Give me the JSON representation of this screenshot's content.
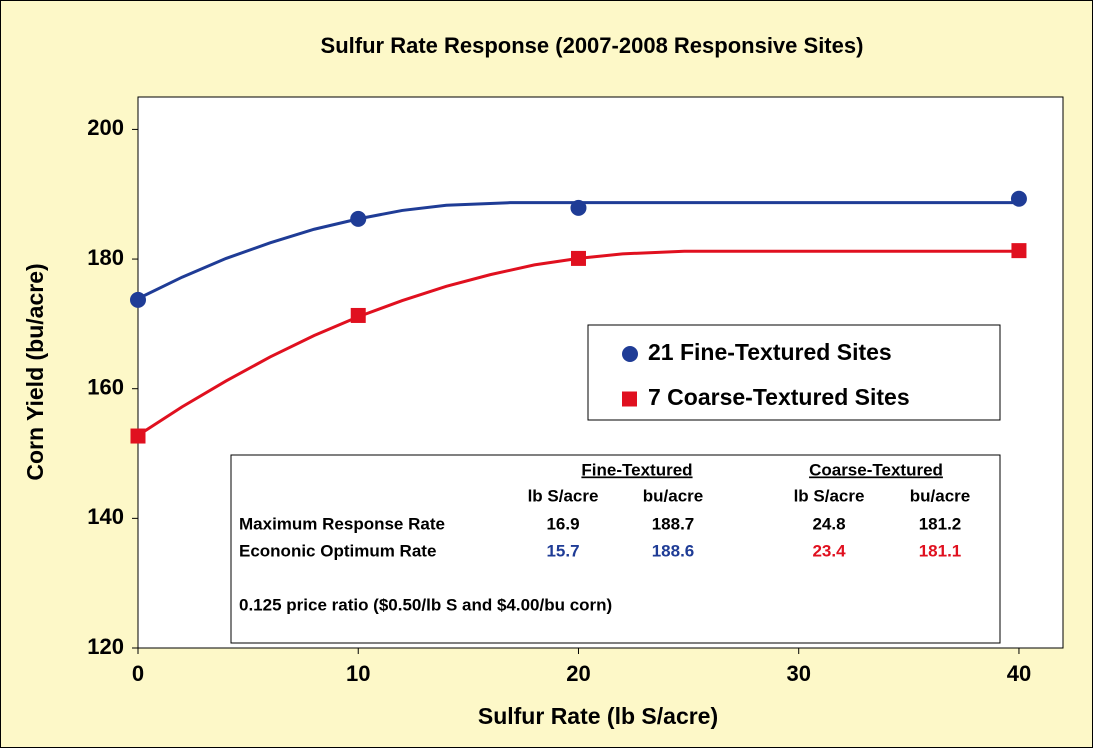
{
  "chart_data": {
    "type": "scatter",
    "title": "Sulfur Rate Response (2007-2008 Responsive Sites)",
    "x_label": "Sulfur Rate (lb S/acre)",
    "y_label": "Corn Yield (bu/acre)",
    "xlim": [
      0,
      42
    ],
    "xticks": [
      0,
      10,
      20,
      30,
      40
    ],
    "ylim": [
      120,
      205
    ],
    "yticks": [
      120,
      140,
      160,
      180,
      200
    ],
    "series": [
      {
        "name": "21 Fine-Textured Sites",
        "color": "#1f3c96",
        "marker": "circle",
        "x": [
          0,
          10,
          20,
          40
        ],
        "values": [
          173.7,
          186.2,
          187.9,
          189.3
        ],
        "fit": {
          "x": [
            0,
            2,
            4,
            6,
            8,
            10,
            12,
            14,
            16.9,
            40
          ],
          "values": [
            173.9,
            177.2,
            180.1,
            182.5,
            184.6,
            186.2,
            187.5,
            188.3,
            188.7,
            188.7
          ]
        }
      },
      {
        "name": "7 Coarse-Textured Sites",
        "color": "#e0101f",
        "marker": "square",
        "x": [
          0,
          10,
          20,
          40
        ],
        "values": [
          152.7,
          171.3,
          180.1,
          181.3
        ],
        "fit": {
          "x": [
            0,
            2,
            4,
            6,
            8,
            10,
            12,
            14,
            16,
            18,
            20,
            22,
            24.8,
            40
          ],
          "values": [
            152.8,
            157.2,
            161.2,
            164.9,
            168.2,
            171.1,
            173.6,
            175.8,
            177.6,
            179.1,
            180.1,
            180.8,
            181.2,
            181.2
          ]
        }
      }
    ],
    "table": {
      "groups": [
        "Fine-Textured",
        "Coarse-Textured"
      ],
      "columns": [
        "lb S/acre",
        "bu/acre",
        "lb S/acre",
        "bu/acre"
      ],
      "rows": [
        {
          "label": "Maximum Response Rate",
          "values": [
            16.9,
            188.7,
            24.8,
            181.2
          ]
        },
        {
          "label": "Econonic Optimum Rate",
          "values": [
            15.7,
            188.6,
            23.4,
            181.1
          ]
        }
      ],
      "note": "0.125 price ratio ($0.50/lb S and $4.00/bu corn)"
    }
  }
}
